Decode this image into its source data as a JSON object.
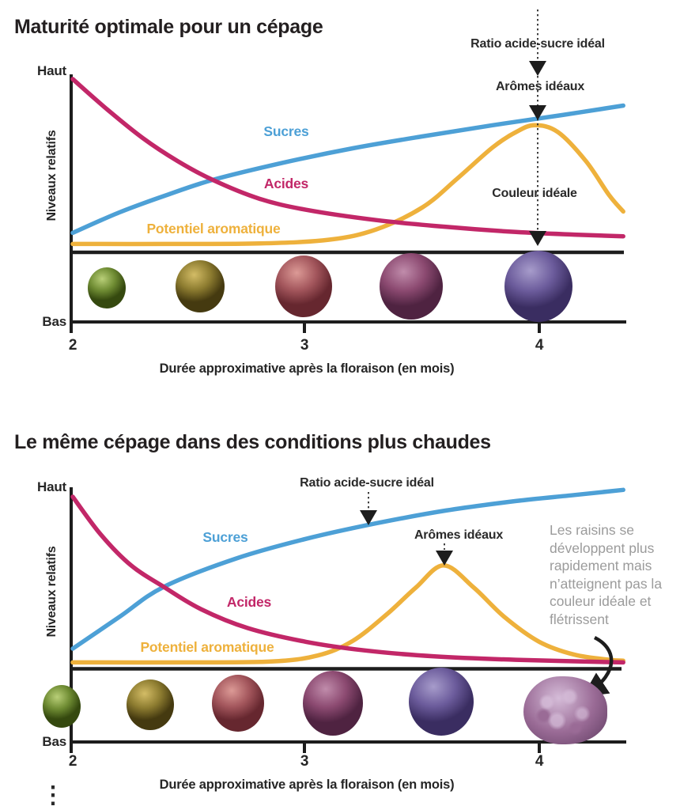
{
  "chart_data": [
    {
      "type": "line",
      "title": "Maturité optimale pour un cépage",
      "xlabel": "Durée approximative après la floraison (en mois)",
      "ylabel": "Niveaux relatifs",
      "y_high_label": "Haut",
      "y_low_label": "Bas",
      "xticks": [
        "2",
        "3",
        "4"
      ],
      "x_range_months": [
        2,
        4.36
      ],
      "y_range_relative": [
        0,
        1
      ],
      "grid": false,
      "series": [
        {
          "name": "Potentiel aromatique",
          "color": "#eeb13c",
          "points": [
            [
              2,
              0.035
            ],
            [
              2.4,
              0.035
            ],
            [
              2.8,
              0.038
            ],
            [
              3.1,
              0.06
            ],
            [
              3.3,
              0.12
            ],
            [
              3.5,
              0.25
            ],
            [
              3.65,
              0.42
            ],
            [
              3.8,
              0.6
            ],
            [
              3.9,
              0.69
            ],
            [
              3.98,
              0.73
            ],
            [
              4.08,
              0.69
            ],
            [
              4.2,
              0.52
            ],
            [
              4.3,
              0.32
            ],
            [
              4.36,
              0.225
            ]
          ]
        },
        {
          "name": "Sucres",
          "color": "#4da0d6",
          "points": [
            [
              2,
              0.1
            ],
            [
              2.2,
              0.22
            ],
            [
              2.4,
              0.32
            ],
            [
              2.6,
              0.41
            ],
            [
              2.9,
              0.51
            ],
            [
              3.2,
              0.595
            ],
            [
              3.5,
              0.665
            ],
            [
              3.8,
              0.73
            ],
            [
              4.1,
              0.79
            ],
            [
              4.36,
              0.845
            ]
          ]
        },
        {
          "name": "Acides",
          "color": "#c22768",
          "points": [
            [
              2,
              1
            ],
            [
              2.15,
              0.82
            ],
            [
              2.3,
              0.655
            ],
            [
              2.45,
              0.52
            ],
            [
              2.6,
              0.41
            ],
            [
              2.8,
              0.3
            ],
            [
              3,
              0.235
            ],
            [
              3.3,
              0.175
            ],
            [
              3.6,
              0.135
            ],
            [
              3.9,
              0.105
            ],
            [
              4.15,
              0.09
            ],
            [
              4.36,
              0.08
            ]
          ]
        }
      ],
      "annotations": [
        {
          "text": "Ratio acide-sucre idéal",
          "x_month": 3.99
        },
        {
          "text": "Arômes idéaux",
          "x_month": 3.99
        },
        {
          "text": "Couleur idéale",
          "x_month": 3.99
        }
      ],
      "grapes": [
        {
          "light": "#b9cf78",
          "mid": "#6f8c33",
          "dark": "#35490f"
        },
        {
          "light": "#d3bc66",
          "mid": "#8d7c30",
          "dark": "#453a10"
        },
        {
          "light": "#dc9a96",
          "mid": "#a3565c",
          "dark": "#66272f"
        },
        {
          "light": "#c08cab",
          "mid": "#8c4a71",
          "dark": "#4f2341"
        },
        {
          "light": "#a79ccb",
          "mid": "#6c5c9c",
          "dark": "#3a2d61"
        }
      ]
    },
    {
      "type": "line",
      "title": "Le même cépage dans des conditions plus chaudes",
      "xlabel": "Durée approximative après la floraison (en mois)",
      "ylabel": "Niveaux relatifs",
      "y_high_label": "Haut",
      "y_low_label": "Bas",
      "xticks": [
        "2",
        "3",
        "4"
      ],
      "x_range_months": [
        2,
        4.36
      ],
      "y_range_relative": [
        0,
        1
      ],
      "grid": false,
      "series": [
        {
          "name": "Potentiel aromatique",
          "color": "#eeb13c",
          "points": [
            [
              2,
              0.035
            ],
            [
              2.5,
              0.035
            ],
            [
              2.85,
              0.04
            ],
            [
              3.05,
              0.075
            ],
            [
              3.2,
              0.16
            ],
            [
              3.35,
              0.32
            ],
            [
              3.47,
              0.47
            ],
            [
              3.59,
              0.6
            ],
            [
              3.72,
              0.47
            ],
            [
              3.85,
              0.3
            ],
            [
              4,
              0.155
            ],
            [
              4.15,
              0.08
            ],
            [
              4.3,
              0.05
            ],
            [
              4.36,
              0.045
            ]
          ]
        },
        {
          "name": "Sucres",
          "color": "#4da0d6",
          "points": [
            [
              2,
              0.115
            ],
            [
              2.2,
              0.3
            ],
            [
              2.39,
              0.475
            ],
            [
              2.7,
              0.64
            ],
            [
              3,
              0.755
            ],
            [
              3.3,
              0.845
            ],
            [
              3.6,
              0.92
            ],
            [
              3.9,
              0.975
            ],
            [
              4.15,
              1.01
            ],
            [
              4.36,
              1.04
            ]
          ]
        },
        {
          "name": "Acides",
          "color": "#c22768",
          "points": [
            [
              2,
              1
            ],
            [
              2.12,
              0.78
            ],
            [
              2.25,
              0.6
            ],
            [
              2.39,
              0.475
            ],
            [
              2.55,
              0.345
            ],
            [
              2.75,
              0.235
            ],
            [
              3,
              0.155
            ],
            [
              3.25,
              0.105
            ],
            [
              3.55,
              0.07
            ],
            [
              3.9,
              0.05
            ],
            [
              4.36,
              0.035
            ]
          ]
        }
      ],
      "annotations": [
        {
          "text": "Ratio acide-sucre idéal",
          "x_month": 3.27
        },
        {
          "text": "Arômes idéaux",
          "x_month": 3.59
        }
      ],
      "note": "Les raisins se développent plus rapidement mais n’atteignent pas la couleur idéale et flétrissent",
      "grapes": [
        {
          "light": "#b9cf78",
          "mid": "#6f8c33",
          "dark": "#35490f"
        },
        {
          "light": "#d3bc66",
          "mid": "#8d7c30",
          "dark": "#453a10"
        },
        {
          "light": "#dc9a96",
          "mid": "#a3565c",
          "dark": "#66272f"
        },
        {
          "light": "#c08cab",
          "mid": "#8c4a71",
          "dark": "#4f2341"
        },
        {
          "light": "#a79ccb",
          "mid": "#6c5c9c",
          "dark": "#3a2d61"
        },
        {
          "light": "#d5bcd8",
          "mid": "#9a6b96",
          "dark": "#5e3b60",
          "withered": true
        }
      ]
    }
  ],
  "misc": {
    "continuation_marker": "⋮"
  }
}
